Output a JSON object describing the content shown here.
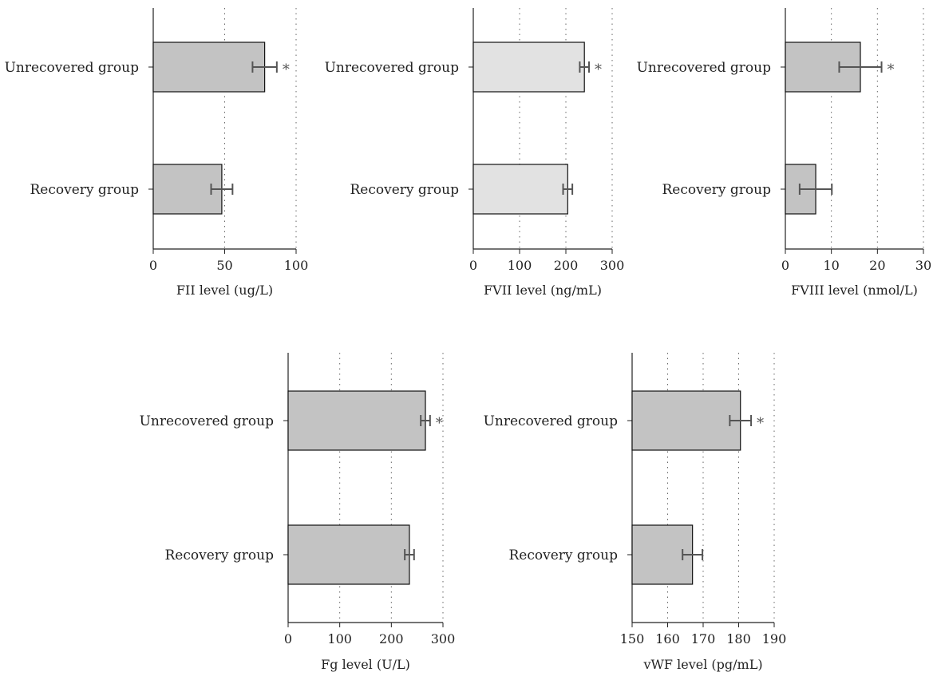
{
  "chart_data": [
    {
      "type": "bar",
      "orientation": "horizontal",
      "xlabel": "FII level (ug/L)",
      "xlim": [
        0,
        100
      ],
      "xticks": [
        0,
        50,
        100
      ],
      "grid": "vertical dotted",
      "bar_color": "#c3c3c3",
      "categories": [
        "Unrecovered group",
        "Recovery group"
      ],
      "values": [
        78,
        48
      ],
      "errors": [
        8.5,
        7.5
      ],
      "significance": [
        "*",
        ""
      ]
    },
    {
      "type": "bar",
      "orientation": "horizontal",
      "xlabel": "FVII level (ng/mL)",
      "xlim": [
        0,
        300
      ],
      "xticks": [
        0,
        100,
        200,
        300
      ],
      "grid": "vertical dotted",
      "bar_color": "#e2e2e2",
      "categories": [
        "Unrecovered group",
        "Recovery group"
      ],
      "values": [
        240,
        204
      ],
      "errors": [
        10,
        10
      ],
      "significance": [
        "*",
        ""
      ]
    },
    {
      "type": "bar",
      "orientation": "horizontal",
      "xlabel": "FVIII level (nmol/L)",
      "xlim": [
        0,
        30
      ],
      "xticks": [
        0,
        10,
        20,
        30
      ],
      "grid": "vertical dotted",
      "bar_color": "#c3c3c3",
      "categories": [
        "Unrecovered group",
        "Recovery group"
      ],
      "values": [
        16.3,
        6.6
      ],
      "errors": [
        4.6,
        3.5
      ],
      "significance": [
        "*",
        ""
      ]
    },
    {
      "type": "bar",
      "orientation": "horizontal",
      "xlabel": "Fg level (U/L)",
      "xlim": [
        0,
        300
      ],
      "xticks": [
        0,
        100,
        200,
        300
      ],
      "grid": "vertical dotted",
      "bar_color": "#c3c3c3",
      "categories": [
        "Unrecovered group",
        "Recovery group"
      ],
      "values": [
        266,
        235
      ],
      "errors": [
        9,
        9
      ],
      "significance": [
        "*",
        ""
      ]
    },
    {
      "type": "bar",
      "orientation": "horizontal",
      "xlabel": "vWF level (pg/mL)",
      "xlim": [
        150,
        190
      ],
      "xticks": [
        150,
        160,
        170,
        180,
        190
      ],
      "grid": "vertical dotted",
      "bar_color": "#c3c3c3",
      "categories": [
        "Unrecovered group",
        "Recovery group"
      ],
      "values": [
        180.5,
        167
      ],
      "errors": [
        3,
        2.8
      ],
      "significance": [
        "*",
        ""
      ]
    }
  ]
}
